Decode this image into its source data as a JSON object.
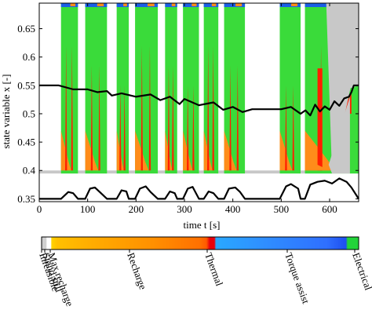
{
  "chart_data": {
    "type": "area",
    "xlabel": "time t [s]",
    "ylabel": "state variable x [-]",
    "xlim": [
      0,
      660
    ],
    "ylim": [
      0.345,
      0.695
    ],
    "x_ticks": [
      0,
      100,
      200,
      300,
      400,
      500,
      600
    ],
    "y_ticks": [
      0.35,
      0.4,
      0.45,
      0.5,
      0.55,
      0.6,
      0.65
    ],
    "grid": false,
    "driving_segments": [
      [
        45,
        80
      ],
      [
        95,
        140
      ],
      [
        160,
        185
      ],
      [
        198,
        245
      ],
      [
        260,
        285
      ],
      [
        297,
        330
      ],
      [
        340,
        370
      ],
      [
        382,
        425
      ],
      [
        497,
        540
      ],
      [
        549,
        660
      ]
    ],
    "state_trajectory": {
      "x": [
        0,
        40,
        70,
        100,
        120,
        140,
        150,
        170,
        200,
        230,
        250,
        270,
        290,
        300,
        330,
        360,
        380,
        400,
        420,
        440,
        480,
        500,
        520,
        540,
        550,
        560,
        570,
        580,
        590,
        600,
        610,
        620,
        630,
        640,
        645,
        650,
        660
      ],
      "y": [
        0.55,
        0.55,
        0.543,
        0.543,
        0.538,
        0.54,
        0.532,
        0.536,
        0.53,
        0.534,
        0.524,
        0.53,
        0.517,
        0.526,
        0.515,
        0.52,
        0.507,
        0.512,
        0.503,
        0.508,
        0.508,
        0.508,
        0.512,
        0.5,
        0.506,
        0.497,
        0.516,
        0.504,
        0.513,
        0.507,
        0.522,
        0.514,
        0.527,
        0.53,
        0.538,
        0.55,
        0.55
      ]
    },
    "speed_profile": {
      "x": [
        0,
        45,
        60,
        70,
        80,
        95,
        105,
        115,
        125,
        140,
        160,
        170,
        180,
        185,
        198,
        208,
        220,
        230,
        245,
        260,
        270,
        280,
        285,
        297,
        307,
        317,
        330,
        340,
        350,
        360,
        370,
        382,
        392,
        405,
        415,
        425,
        440,
        497,
        510,
        520,
        535,
        540,
        549,
        560,
        575,
        590,
        605,
        620,
        635,
        645,
        660
      ],
      "y": [
        0.35,
        0.35,
        0.362,
        0.36,
        0.35,
        0.35,
        0.368,
        0.37,
        0.362,
        0.35,
        0.35,
        0.365,
        0.363,
        0.35,
        0.35,
        0.368,
        0.372,
        0.362,
        0.35,
        0.35,
        0.363,
        0.36,
        0.35,
        0.35,
        0.368,
        0.371,
        0.35,
        0.35,
        0.363,
        0.36,
        0.35,
        0.35,
        0.368,
        0.37,
        0.362,
        0.35,
        0.35,
        0.35,
        0.372,
        0.376,
        0.368,
        0.35,
        0.35,
        0.375,
        0.38,
        0.382,
        0.377,
        0.386,
        0.38,
        0.37,
        0.35
      ]
    },
    "colorbar": {
      "labels": [
        "Infeasible",
        "Stand still",
        "Max recharge",
        "Recharge",
        "Thermal",
        "Torque assist",
        "Electrical"
      ],
      "colors": [
        "#cccccc",
        "#ffffff",
        "#ffd700",
        "#ff8c00",
        "#e8000b",
        "#2f8fff",
        "#22d43a"
      ]
    },
    "colors": {
      "electrical": "#3adb3a",
      "recharge": "#ff8c1a",
      "thermal": "#ff1e00",
      "torque_assist": "#1b5fe6",
      "infeasible": "#c8c8c8",
      "trajectory": "#000000"
    }
  }
}
